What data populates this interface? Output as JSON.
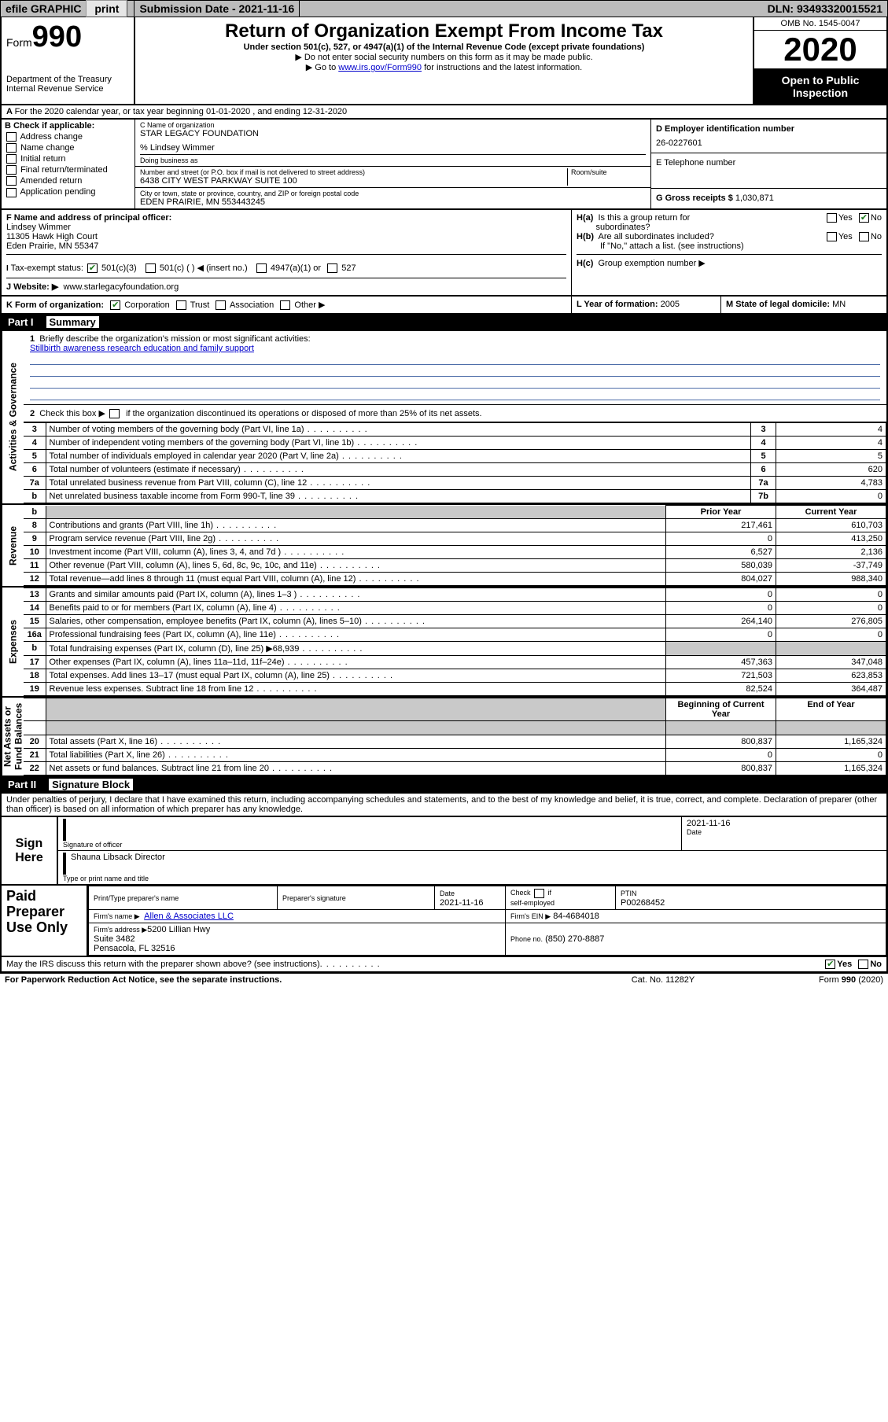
{
  "topbar": {
    "efile": "efile GRAPHIC",
    "print": "print",
    "sub_lbl": "Submission Date -",
    "sub_date": "2021-11-16",
    "dln_lbl": "DLN:",
    "dln": "93493320015521"
  },
  "header": {
    "form_word": "Form",
    "form_num": "990",
    "dept": "Department of the Treasury\nInternal Revenue Service",
    "title": "Return of Organization Exempt From Income Tax",
    "sub": "Under section 501(c), 527, or 4947(a)(1) of the Internal Revenue Code (except private foundations)",
    "note1": "Do not enter social security numbers on this form as it may be made public.",
    "note2_pre": "Go to ",
    "note2_link": "www.irs.gov/Form990",
    "note2_post": " for instructions and the latest information.",
    "omb": "OMB No. 1545-0047",
    "year": "2020",
    "opp": "Open to Public Inspection"
  },
  "lineA": "For the 2020 calendar year, or tax year beginning 01-01-2020    , and ending 12-31-2020",
  "checkB": {
    "hdr": "B Check if applicable:",
    "items": [
      "Address change",
      "Name change",
      "Initial return",
      "Final return/terminated",
      "Amended return",
      "Application pending"
    ]
  },
  "org": {
    "c_lbl": "C Name of organization",
    "name": "STAR LEGACY FOUNDATION",
    "care": "% Lindsey Wimmer",
    "dba_lbl": "Doing business as",
    "addr_lbl": "Number and street (or P.O. box if mail is not delivered to street address)",
    "room_lbl": "Room/suite",
    "addr": "6438 CITY WEST PARKWAY SUITE 100",
    "city_lbl": "City or town, state or province, country, and ZIP or foreign postal code",
    "city": "EDEN PRAIRIE, MN  553443245"
  },
  "right1": {
    "d_lbl": "D Employer identification number",
    "ein": "26-0227601",
    "e_lbl": "E Telephone number",
    "phone": "",
    "g_lbl": "G Gross receipts $",
    "gross": "1,030,871"
  },
  "officer": {
    "f_lbl": "F  Name and address of principal officer:",
    "name": "Lindsey Wimmer",
    "addr1": "11305 Hawk High Court",
    "addr2": "Eden Prairie, MN  55347"
  },
  "exempt": {
    "lbl": "Tax-exempt status:",
    "a": "501(c)(3)",
    "b": "501(c) (   ) ◀ (insert no.)",
    "c": "4947(a)(1) or",
    "d": "527"
  },
  "website": {
    "lbl": "J  Website: ▶",
    "val": "www.starlegacyfoundation.org"
  },
  "lineK": {
    "lbl": "K Form of organization:",
    "a": "Corporation",
    "b": "Trust",
    "c": "Association",
    "d": "Other ▶"
  },
  "H": {
    "a": "H(a)  Is this a group return for subordinates?",
    "b": "H(b)  Are all subordinates included?",
    "note": "If \"No,\" attach a list. (see instructions)",
    "c": "H(c)  Group exemption number ▶",
    "yes": "Yes",
    "no": "No"
  },
  "L": {
    "lbl": "L Year of formation:",
    "val": "2005"
  },
  "M": {
    "lbl": "M State of legal domicile:",
    "val": "MN"
  },
  "part1": {
    "tag": "Part I",
    "ttl": "Summary"
  },
  "summary": {
    "q1": "Briefly describe the organization's mission or most significant activities:",
    "mission": "Stillbirth awareness research education and family support",
    "q2": "Check this box ▶          if the organization discontinued its operations or disposed of more than 25% of its net assets.",
    "rows_ag": [
      {
        "n": "3",
        "t": "Number of voting members of the governing body (Part VI, line 1a)",
        "box": "3",
        "v": "4"
      },
      {
        "n": "4",
        "t": "Number of independent voting members of the governing body (Part VI, line 1b)",
        "box": "4",
        "v": "4"
      },
      {
        "n": "5",
        "t": "Total number of individuals employed in calendar year 2020 (Part V, line 2a)",
        "box": "5",
        "v": "5"
      },
      {
        "n": "6",
        "t": "Total number of volunteers (estimate if necessary)",
        "box": "6",
        "v": "620"
      },
      {
        "n": "7a",
        "t": "Total unrelated business revenue from Part VIII, column (C), line 12",
        "box": "7a",
        "v": "4,783"
      },
      {
        "n": "b",
        "t": "Net unrelated business taxable income from Form 990-T, line 39",
        "box": "7b",
        "v": "0"
      }
    ],
    "col_prior": "Prior Year",
    "col_curr": "Current Year",
    "rev": [
      {
        "n": "8",
        "t": "Contributions and grants (Part VIII, line 1h)",
        "p": "217,461",
        "c": "610,703"
      },
      {
        "n": "9",
        "t": "Program service revenue (Part VIII, line 2g)",
        "p": "0",
        "c": "413,250"
      },
      {
        "n": "10",
        "t": "Investment income (Part VIII, column (A), lines 3, 4, and 7d )",
        "p": "6,527",
        "c": "2,136"
      },
      {
        "n": "11",
        "t": "Other revenue (Part VIII, column (A), lines 5, 6d, 8c, 9c, 10c, and 11e)",
        "p": "580,039",
        "c": "-37,749"
      },
      {
        "n": "12",
        "t": "Total revenue—add lines 8 through 11 (must equal Part VIII, column (A), line 12)",
        "p": "804,027",
        "c": "988,340"
      }
    ],
    "exp": [
      {
        "n": "13",
        "t": "Grants and similar amounts paid (Part IX, column (A), lines 1–3 )",
        "p": "0",
        "c": "0"
      },
      {
        "n": "14",
        "t": "Benefits paid to or for members (Part IX, column (A), line 4)",
        "p": "0",
        "c": "0"
      },
      {
        "n": "15",
        "t": "Salaries, other compensation, employee benefits (Part IX, column (A), lines 5–10)",
        "p": "264,140",
        "c": "276,805"
      },
      {
        "n": "16a",
        "t": "Professional fundraising fees (Part IX, column (A), line 11e)",
        "p": "0",
        "c": "0"
      },
      {
        "n": "b",
        "t": "Total fundraising expenses (Part IX, column (D), line 25) ▶68,939",
        "p": "",
        "c": "",
        "shade": true
      },
      {
        "n": "17",
        "t": "Other expenses (Part IX, column (A), lines 11a–11d, 11f–24e)",
        "p": "457,363",
        "c": "347,048"
      },
      {
        "n": "18",
        "t": "Total expenses. Add lines 13–17 (must equal Part IX, column (A), line 25)",
        "p": "721,503",
        "c": "623,853"
      },
      {
        "n": "19",
        "t": "Revenue less expenses. Subtract line 18 from line 12",
        "p": "82,524",
        "c": "364,487"
      }
    ],
    "col_beg": "Beginning of Current Year",
    "col_end": "End of Year",
    "na": [
      {
        "n": "20",
        "t": "Total assets (Part X, line 16)",
        "p": "800,837",
        "c": "1,165,324"
      },
      {
        "n": "21",
        "t": "Total liabilities (Part X, line 26)",
        "p": "0",
        "c": "0"
      },
      {
        "n": "22",
        "t": "Net assets or fund balances. Subtract line 21 from line 20",
        "p": "800,837",
        "c": "1,165,324"
      }
    ]
  },
  "part2": {
    "tag": "Part II",
    "ttl": "Signature Block"
  },
  "penalties": "Under penalties of perjury, I declare that I have examined this return, including accompanying schedules and statements, and to the best of my knowledge and belief, it is true, correct, and complete. Declaration of preparer (other than officer) is based on all information of which preparer has any knowledge.",
  "sign": {
    "here": "Sign Here",
    "sig_of": "Signature of officer",
    "date_lbl": "Date",
    "date": "2021-11-16",
    "name": "Shauna Libsack  Director",
    "type_lbl": "Type or print name and title"
  },
  "paid": {
    "ttl": "Paid Preparer Use Only",
    "h1": "Print/Type preparer's name",
    "h2": "Preparer's signature",
    "h3": "Date",
    "h3v": "2021-11-16",
    "h4": "Check          if self-employed",
    "h5": "PTIN",
    "ptin": "P00268452",
    "firm_lbl": "Firm's name     ▶",
    "firm": "Allen & Associates LLC",
    "fein_lbl": "Firm's EIN ▶",
    "fein": "84-4684018",
    "addr_lbl": "Firm's address ▶",
    "addr": "5200 Lillian Hwy\nSuite 3482\nPensacola, FL  32516",
    "phone_lbl": "Phone no.",
    "phone": "(850) 270-8887"
  },
  "discuss": {
    "q": "May the IRS discuss this return with the preparer shown above? (see instructions)",
    "yes": "Yes",
    "no": "No"
  },
  "footer": {
    "l": "For Paperwork Reduction Act Notice, see the separate instructions.",
    "c": "Cat. No. 11282Y",
    "r": "Form 990 (2020)"
  },
  "colors": {
    "link": "#0000cc",
    "ul": "#4d6da8",
    "chk_on": "#1a7a1a"
  }
}
